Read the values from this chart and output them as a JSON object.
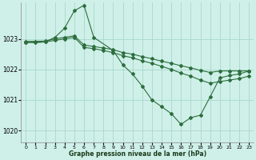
{
  "title": "Graphe pression niveau de la mer (hPa)",
  "bg_color": "#cff0e8",
  "grid_color": "#a8d8cc",
  "line_color": "#2d6e3e",
  "xlim": [
    -0.5,
    23.5
  ],
  "ylim": [
    1019.6,
    1024.2
  ],
  "yticks": [
    1020,
    1021,
    1022,
    1023
  ],
  "xticks": [
    0,
    1,
    2,
    3,
    4,
    5,
    6,
    7,
    8,
    9,
    10,
    11,
    12,
    13,
    14,
    15,
    16,
    17,
    18,
    19,
    20,
    21,
    22,
    23
  ],
  "series": [
    {
      "x": [
        0,
        1,
        2,
        3,
        4,
        5,
        6,
        7,
        8,
        9,
        10,
        11,
        12,
        13,
        14,
        15,
        16,
        17,
        18,
        19,
        20,
        21,
        22,
        23
      ],
      "y": [
        1022.92,
        1022.92,
        1022.93,
        1023.0,
        1023.05,
        1023.1,
        1022.8,
        1022.75,
        1022.7,
        1022.65,
        1022.55,
        1022.5,
        1022.42,
        1022.35,
        1022.27,
        1022.2,
        1022.12,
        1022.05,
        1021.97,
        1021.9,
        1021.95,
        1021.95,
        1021.95,
        1021.95
      ]
    },
    {
      "x": [
        0,
        1,
        2,
        3,
        4,
        5,
        6,
        7,
        8,
        9,
        10,
        11,
        12,
        13,
        14,
        15,
        16,
        17,
        18,
        19,
        20,
        21,
        22,
        23
      ],
      "y": [
        1022.88,
        1022.88,
        1022.9,
        1022.95,
        1023.0,
        1023.05,
        1022.72,
        1022.68,
        1022.62,
        1022.55,
        1022.45,
        1022.38,
        1022.28,
        1022.2,
        1022.1,
        1022.0,
        1021.88,
        1021.78,
        1021.65,
        1021.55,
        1021.6,
        1021.65,
        1021.7,
        1021.78
      ]
    },
    {
      "x": [
        0,
        2,
        3,
        4,
        5,
        6,
        7,
        9,
        10,
        11,
        12,
        13,
        14,
        15,
        16,
        17,
        18,
        19,
        20,
        21,
        22,
        23
      ],
      "y": [
        1022.88,
        1022.9,
        1023.05,
        1023.35,
        1023.92,
        1024.1,
        1023.05,
        1022.62,
        1022.15,
        1021.85,
        1021.45,
        1021.0,
        1020.78,
        1020.55,
        1020.2,
        1020.42,
        1020.5,
        1021.1,
        1021.72,
        1021.8,
        1021.85,
        1021.95
      ]
    }
  ]
}
